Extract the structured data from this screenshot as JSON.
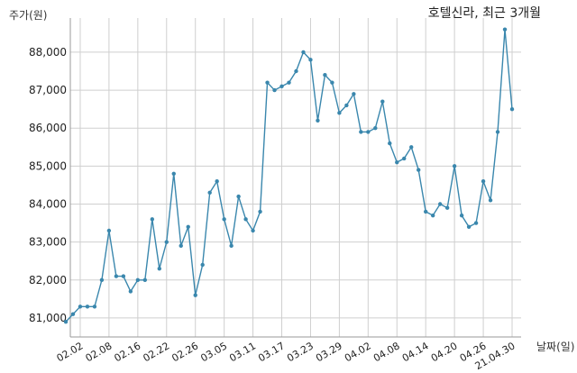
{
  "header": {
    "title": "호텔신라, 최근 3개월",
    "ylabel": "주가(원)",
    "xlabel": "날짜(일)"
  },
  "chart_data": {
    "type": "line",
    "title": "호텔신라, 최근 3개월",
    "ylabel": "주가(원)",
    "xlabel": "날짜(일)",
    "ylim": [
      80500,
      88900
    ],
    "yticks": [
      81000,
      82000,
      83000,
      84000,
      85000,
      86000,
      87000,
      88000
    ],
    "ytick_labels": [
      "81,000",
      "82,000",
      "83,000",
      "84,000",
      "85,000",
      "86,000",
      "87,000",
      "88,000"
    ],
    "xtick_labels": [
      "02.02",
      "02.08",
      "02.16",
      "02.22",
      "02.26",
      "03.05",
      "03.11",
      "03.17",
      "03.23",
      "03.29",
      "04.02",
      "04.08",
      "04.14",
      "04.20",
      "04.26",
      "21.04.30"
    ],
    "xtick_indices": [
      2,
      6,
      10,
      14,
      18,
      22,
      26,
      30,
      34,
      38,
      42,
      46,
      50,
      54,
      58,
      62
    ],
    "grid": true,
    "line_color": "#3a87ad",
    "series": [
      {
        "values": [
          80900,
          81100,
          81300,
          81300,
          81300,
          82000,
          83300,
          82100,
          82100,
          81700,
          82000,
          82000,
          83600,
          82300,
          83000,
          84800,
          82900,
          83400,
          81600,
          82400,
          84300,
          84600,
          83600,
          82900,
          84200,
          83600,
          83300,
          83800,
          87200,
          87000,
          87100,
          87200,
          87500,
          88000,
          87800,
          86200,
          87400,
          87200,
          86400,
          86600,
          86900,
          85900,
          85900,
          86000,
          86700,
          85600,
          85100,
          85200,
          85500,
          84900,
          83800,
          83700,
          84000,
          83900,
          85000,
          83700,
          83400,
          83500,
          84600,
          84100,
          85900,
          88600,
          86500
        ]
      }
    ]
  }
}
